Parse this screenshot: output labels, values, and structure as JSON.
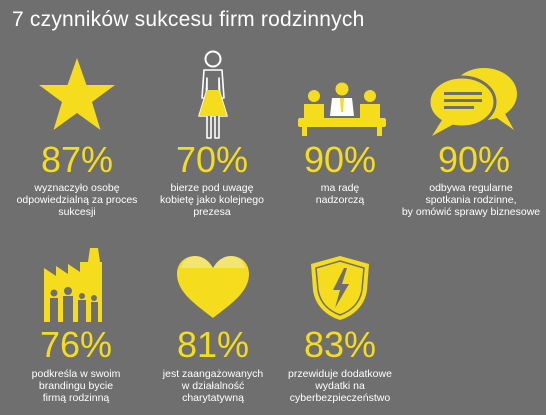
{
  "title": "7 czynników sukcesu firm rodzinnych",
  "colors": {
    "accent": "#f5dd1e",
    "background": "#6f6f70",
    "text": "#ffffff"
  },
  "items": [
    {
      "icon": "star-icon",
      "percent": "87%",
      "caption": "wyznaczyło osobę\nodpowiedzialną za proces\nsukcesji"
    },
    {
      "icon": "woman-icon",
      "percent": "70%",
      "caption": "bierze pod uwagę\nkobietę jako kolejnego\nprezesa"
    },
    {
      "icon": "board-meeting-icon",
      "percent": "90%",
      "caption": "ma radę\nnadzorczą"
    },
    {
      "icon": "speech-bubbles-icon",
      "percent": "90%",
      "caption": "odbywa regularne\nspotkania rodzinne,\nby omówić sprawy biznesowe"
    },
    {
      "icon": "family-factory-icon",
      "percent": "76%",
      "caption": "podkreśla w swoim\nbrandingu bycie\nfirmą rodzinną"
    },
    {
      "icon": "heart-icon",
      "percent": "81%",
      "caption": "jest zaangażowanych\nw działalność\ncharytatywną"
    },
    {
      "icon": "security-shield-icon",
      "percent": "83%",
      "caption": "przewiduje dodatkowe\nwydatki na\ncyberbezpieczeństwo"
    }
  ]
}
